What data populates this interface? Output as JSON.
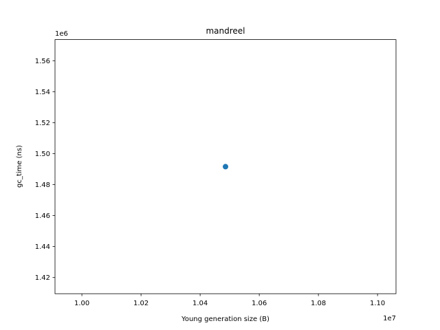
{
  "chart_data": {
    "type": "scatter",
    "title": "mandreel",
    "x_label": "Young generation size (B)",
    "y_label": "gc_time (ns)",
    "x_offset": "1e7",
    "y_offset": "1e6",
    "series": [
      {
        "name": "mandreel",
        "color": "#1f77b4",
        "x": [
          10485760
        ],
        "values": [
          1491600
        ]
      }
    ],
    "xlim": [
      9909043.2,
      11062476.8
    ],
    "xticks": [
      {
        "value": 10000000,
        "label": "1.00"
      },
      {
        "value": 10200000,
        "label": "1.02"
      },
      {
        "value": 10400000,
        "label": "1.04"
      },
      {
        "value": 10600000,
        "label": "1.06"
      },
      {
        "value": 10800000,
        "label": "1.08"
      },
      {
        "value": 11000000,
        "label": "1.10"
      }
    ],
    "ylim": [
      1409562,
      1573638
    ],
    "yticks": [
      {
        "value": 1420000,
        "label": "1.42"
      },
      {
        "value": 1440000,
        "label": "1.44"
      },
      {
        "value": 1460000,
        "label": "1.46"
      },
      {
        "value": 1480000,
        "label": "1.48"
      },
      {
        "value": 1500000,
        "label": "1.50"
      },
      {
        "value": 1520000,
        "label": "1.52"
      },
      {
        "value": 1540000,
        "label": "1.54"
      },
      {
        "value": 1560000,
        "label": "1.56"
      }
    ],
    "grid": false
  }
}
